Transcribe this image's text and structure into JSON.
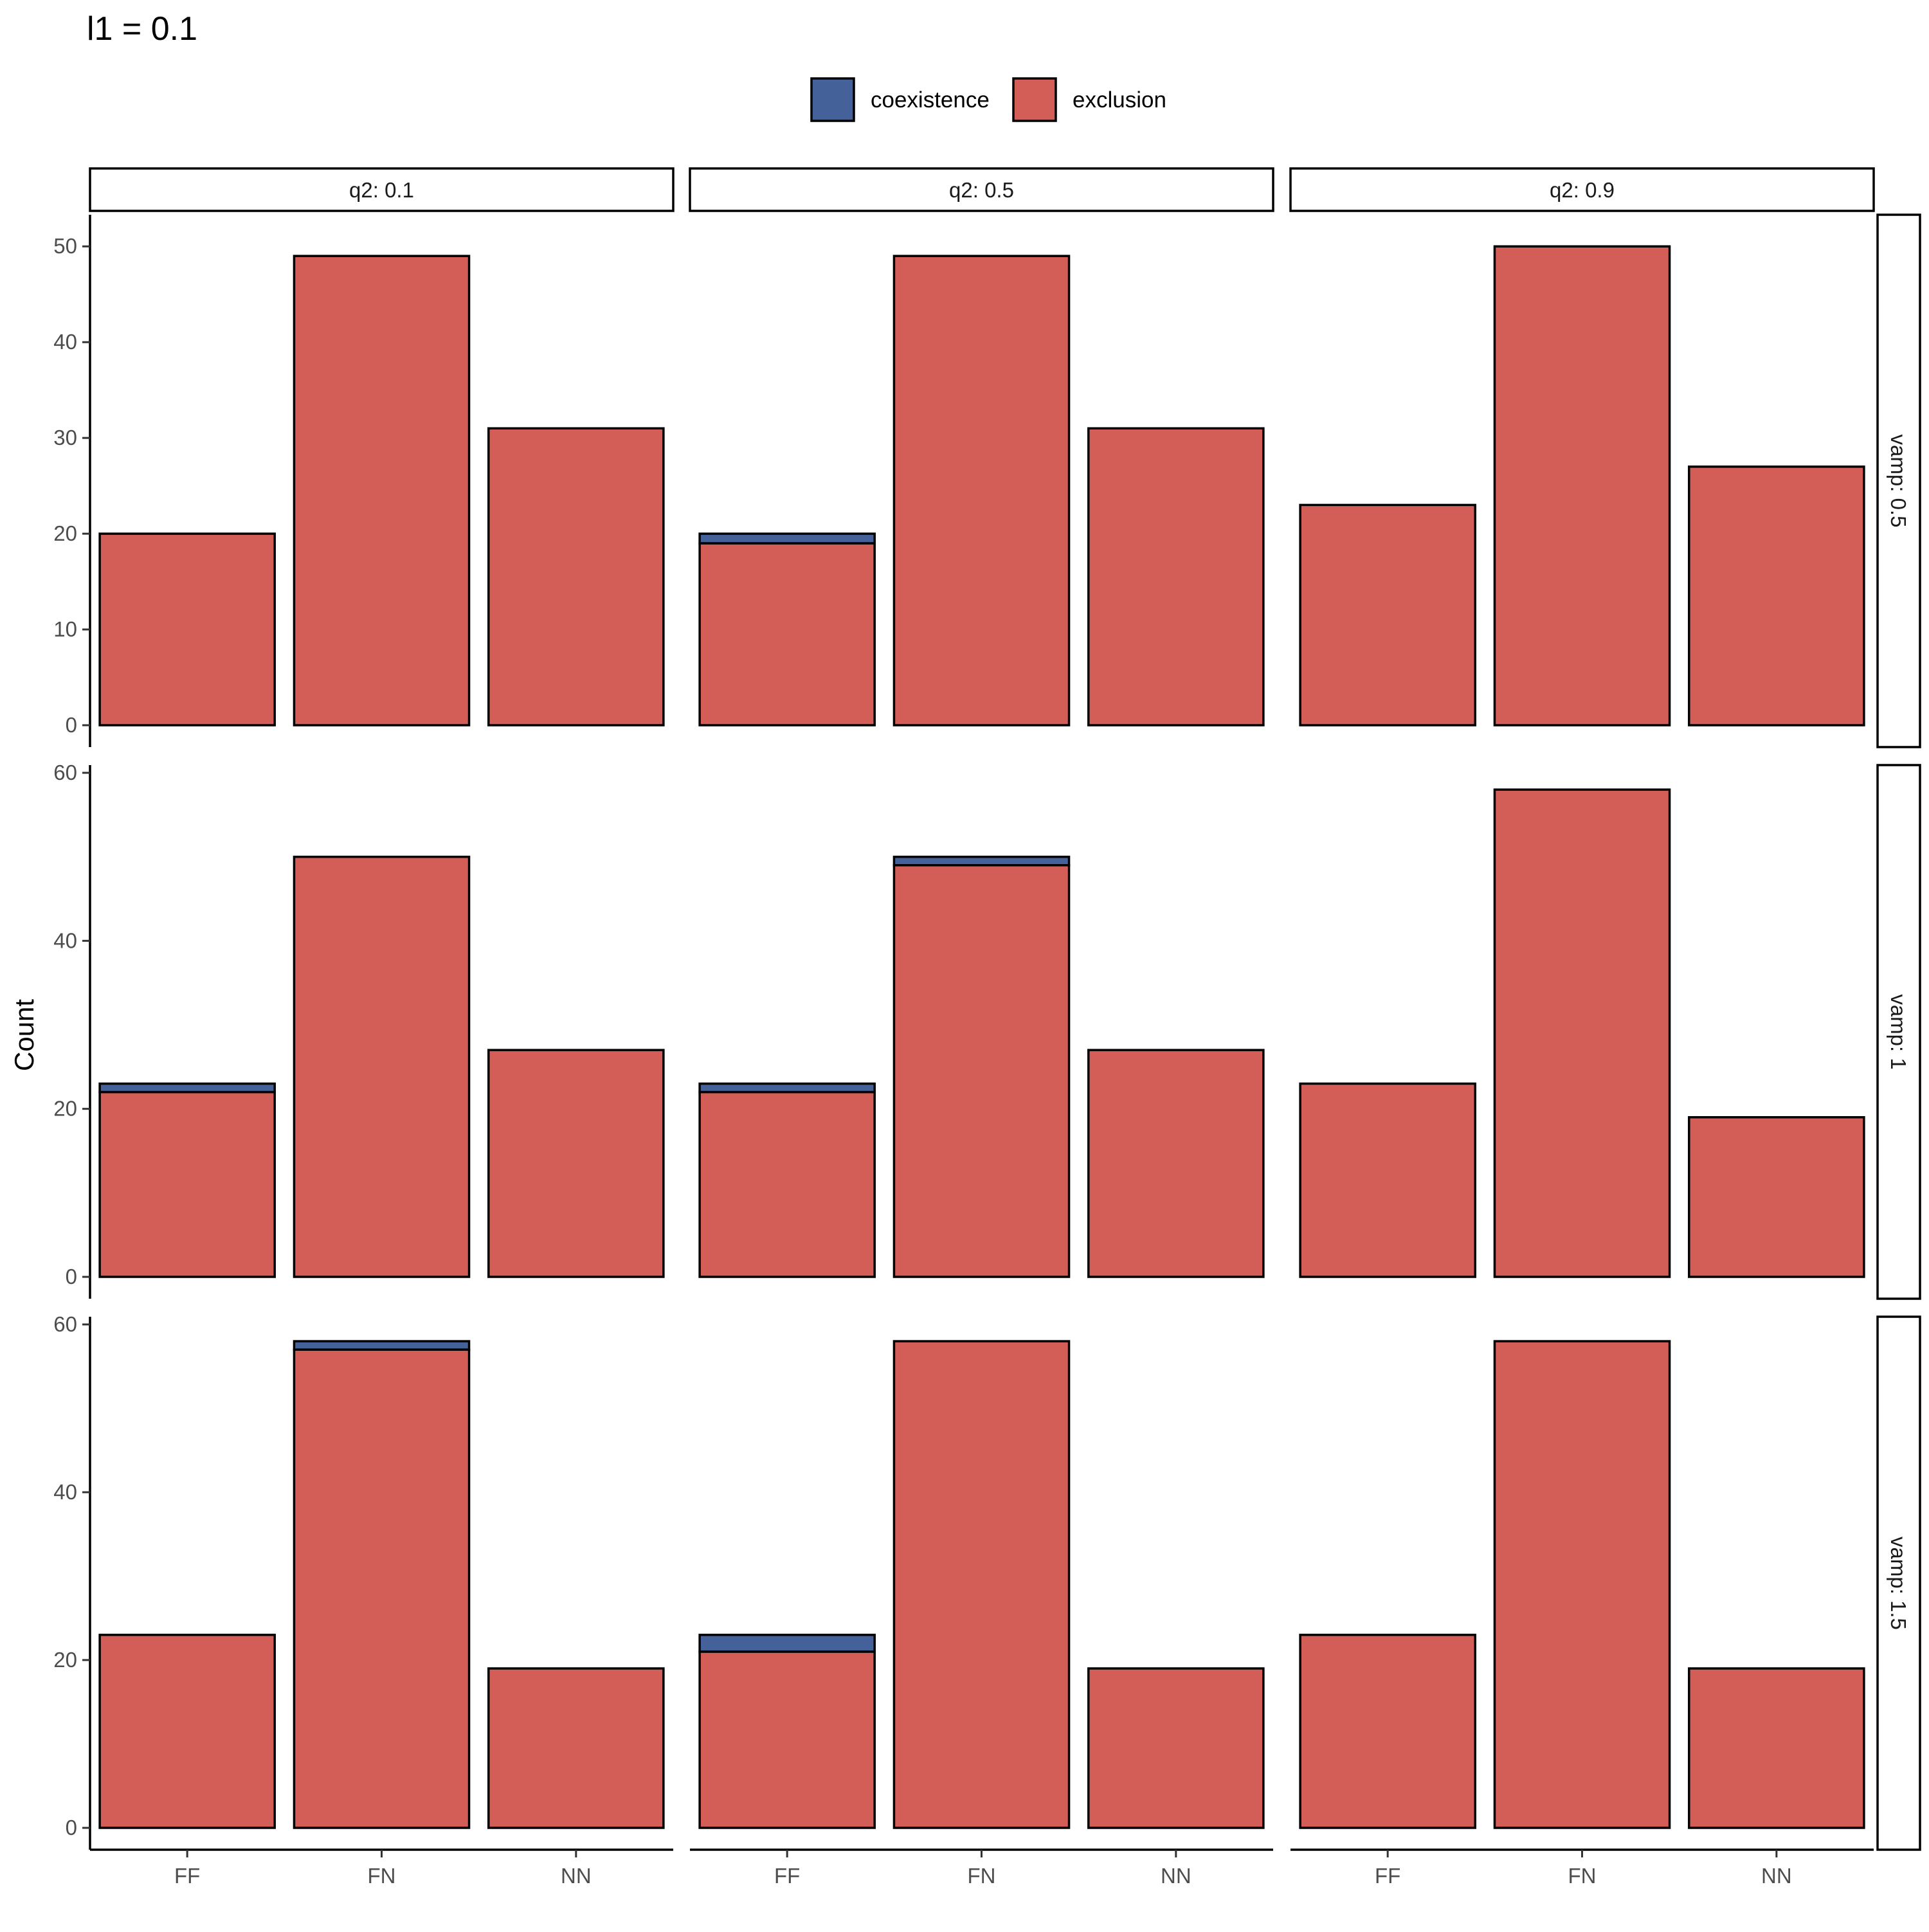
{
  "chart_data": {
    "type": "bar",
    "stacked": true,
    "title": "l1 = 0.1",
    "ylabel": "Count",
    "xlabel": "",
    "categories": [
      "FF",
      "FN",
      "NN"
    ],
    "legend": {
      "placement": "top-center",
      "items": [
        {
          "name": "coexistence",
          "color": "#44619a"
        },
        {
          "name": "exclusion",
          "color": "#d35e58"
        }
      ]
    },
    "columns": [
      "q2: 0.1",
      "q2: 0.5",
      "q2: 0.9"
    ],
    "rows": [
      {
        "label": "vamp: 0.5",
        "ylim": [
          0,
          52.5
        ],
        "yticks": [
          0,
          10,
          20,
          30,
          40,
          50
        ]
      },
      {
        "label": "vamp: 1",
        "ylim": [
          0,
          60
        ],
        "yticks": [
          0,
          20,
          40,
          60
        ]
      },
      {
        "label": "vamp: 1.5",
        "ylim": [
          0,
          60
        ],
        "yticks": [
          0,
          20,
          40,
          60
        ]
      }
    ],
    "panels": [
      {
        "row": 0,
        "col": 0,
        "series": [
          {
            "name": "exclusion",
            "values": [
              20,
              49,
              31
            ]
          },
          {
            "name": "coexistence",
            "values": [
              0,
              0,
              0
            ]
          }
        ]
      },
      {
        "row": 0,
        "col": 1,
        "series": [
          {
            "name": "exclusion",
            "values": [
              19,
              49,
              31
            ]
          },
          {
            "name": "coexistence",
            "values": [
              1,
              0,
              0
            ]
          }
        ]
      },
      {
        "row": 0,
        "col": 2,
        "series": [
          {
            "name": "exclusion",
            "values": [
              23,
              50,
              27
            ]
          },
          {
            "name": "coexistence",
            "values": [
              0,
              0,
              0
            ]
          }
        ]
      },
      {
        "row": 1,
        "col": 0,
        "series": [
          {
            "name": "exclusion",
            "values": [
              22,
              50,
              27
            ]
          },
          {
            "name": "coexistence",
            "values": [
              1,
              0,
              0
            ]
          }
        ]
      },
      {
        "row": 1,
        "col": 1,
        "series": [
          {
            "name": "exclusion",
            "values": [
              22,
              49,
              27
            ]
          },
          {
            "name": "coexistence",
            "values": [
              1,
              1,
              0
            ]
          }
        ]
      },
      {
        "row": 1,
        "col": 2,
        "series": [
          {
            "name": "exclusion",
            "values": [
              23,
              58,
              19
            ]
          },
          {
            "name": "coexistence",
            "values": [
              0,
              0,
              0
            ]
          }
        ]
      },
      {
        "row": 2,
        "col": 0,
        "series": [
          {
            "name": "exclusion",
            "values": [
              23,
              57,
              19
            ]
          },
          {
            "name": "coexistence",
            "values": [
              0,
              1,
              0
            ]
          }
        ]
      },
      {
        "row": 2,
        "col": 1,
        "series": [
          {
            "name": "exclusion",
            "values": [
              21,
              58,
              19
            ]
          },
          {
            "name": "coexistence",
            "values": [
              2,
              0,
              0
            ]
          }
        ]
      },
      {
        "row": 2,
        "col": 2,
        "series": [
          {
            "name": "exclusion",
            "values": [
              23,
              58,
              19
            ]
          },
          {
            "name": "coexistence",
            "values": [
              0,
              0,
              0
            ]
          }
        ]
      }
    ]
  }
}
